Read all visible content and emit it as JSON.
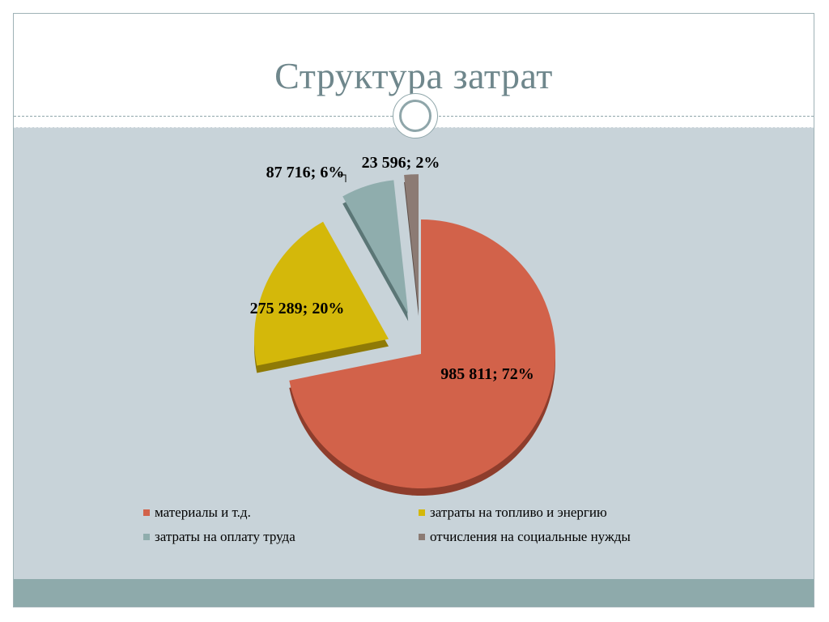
{
  "slide": {
    "title": "Структура затрат"
  },
  "theme": {
    "accent": "#8eaaab",
    "content_bg": "#c8d3d9",
    "title_color": "#6f878c"
  },
  "chart_data": {
    "type": "pie",
    "title": "",
    "slices": [
      {
        "name": "материалы и т.д.",
        "value": 985811,
        "percent": 72,
        "label": "985 811; 72%",
        "color": "#d2624a",
        "side_color": "#8e3d2c",
        "exploded": false
      },
      {
        "name": "затраты на топливо и энергию",
        "value": 275289,
        "percent": 20,
        "label": "275 289; 20%",
        "color": "#d4b80a",
        "side_color": "#8f7a06",
        "exploded": true
      },
      {
        "name": "затраты на оплату труда",
        "value": 87716,
        "percent": 6,
        "label": "87 716; 6%",
        "color": "#8fadad",
        "side_color": "#5b7676",
        "exploded": true
      },
      {
        "name": "отчисления на социальные нужды",
        "value": 23596,
        "percent": 2,
        "label": "23 596; 2%",
        "color": "#8c7b74",
        "side_color": "#5b4d47",
        "exploded": true
      }
    ],
    "legend": {
      "placement": "bottom",
      "items": [
        "материалы и т.д.",
        "затраты на топливо и энергию",
        "затраты на оплату труда",
        "отчисления на социальные нужды"
      ]
    }
  }
}
